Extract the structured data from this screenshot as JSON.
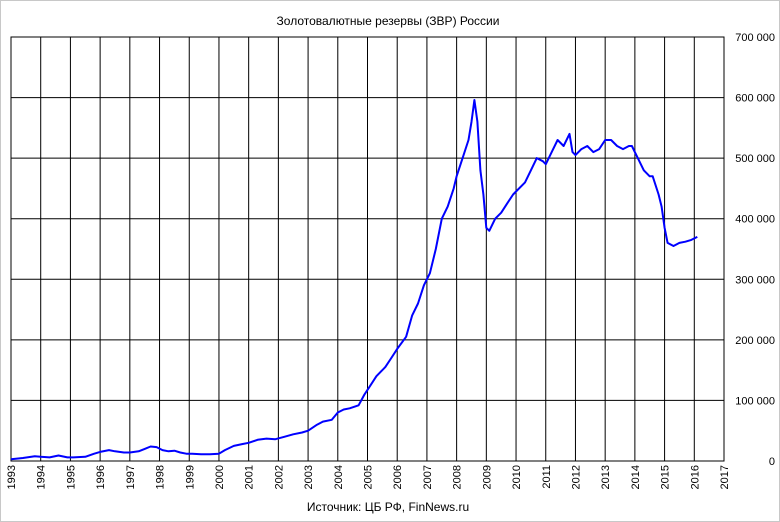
{
  "chart_data": {
    "type": "line",
    "title": "Золотовалютные резервы (ЗВР) России",
    "source": "Источник: ЦБ РФ, FinNews.ru",
    "xlabel": "",
    "ylabel": "",
    "xlim": [
      1993,
      2017
    ],
    "ylim": [
      0,
      700000
    ],
    "x_ticks": [
      "1993",
      "1994",
      "1995",
      "1996",
      "1997",
      "1998",
      "1999",
      "2000",
      "2001",
      "2002",
      "2003",
      "2004",
      "2005",
      "2006",
      "2007",
      "2008",
      "2009",
      "2010",
      "2011",
      "2012",
      "2013",
      "2014",
      "2015",
      "2016",
      "2017"
    ],
    "y_ticks": [
      "0",
      "100 000",
      "200 000",
      "300 000",
      "400 000",
      "500 000",
      "600 000",
      "700 000"
    ],
    "y_axis_side": "right",
    "grid": true,
    "line_color": "#0000ff",
    "series": [
      {
        "x": [
          1993.0,
          1993.4,
          1993.8,
          1994.0,
          1994.3,
          1994.6,
          1994.9,
          1995.1,
          1995.5,
          1995.8,
          1996.0,
          1996.3,
          1996.5,
          1996.8,
          1997.0,
          1997.3,
          1997.5,
          1997.7,
          1997.9,
          1998.1,
          1998.3,
          1998.5,
          1998.7,
          1998.9,
          1999.1,
          1999.4,
          1999.7,
          2000.0,
          2000.2,
          2000.5,
          2000.8,
          2001.0,
          2001.3,
          2001.6,
          2001.9,
          2002.2,
          2002.5,
          2002.8,
          2003.0,
          2003.3,
          2003.5,
          2003.8,
          2004.0,
          2004.2,
          2004.4,
          2004.7,
          2004.9,
          2005.1,
          2005.3,
          2005.6,
          2005.8,
          2006.0,
          2006.3,
          2006.5,
          2006.7,
          2006.9,
          2007.1,
          2007.3,
          2007.5,
          2007.7,
          2007.9,
          2008.0,
          2008.2,
          2008.4,
          2008.5,
          2008.6,
          2008.7,
          2008.8,
          2008.9,
          2009.0,
          2009.1,
          2009.3,
          2009.5,
          2009.7,
          2009.9,
          2010.0,
          2010.3,
          2010.5,
          2010.7,
          2010.9,
          2011.0,
          2011.2,
          2011.4,
          2011.6,
          2011.8,
          2011.9,
          2012.0,
          2012.2,
          2012.4,
          2012.6,
          2012.8,
          2013.0,
          2013.2,
          2013.4,
          2013.6,
          2013.8,
          2013.9,
          2014.1,
          2014.3,
          2014.5,
          2014.6,
          2014.8,
          2014.9,
          2015.0,
          2015.1,
          2015.3,
          2015.5,
          2015.7,
          2015.9,
          2016.1
        ],
        "values": [
          3000,
          5000,
          8000,
          7000,
          6000,
          9000,
          6000,
          6000,
          7000,
          12000,
          15000,
          18000,
          16000,
          14000,
          14000,
          16000,
          20000,
          24000,
          23000,
          18000,
          16000,
          17000,
          14000,
          12000,
          12000,
          11000,
          11000,
          12000,
          18000,
          25000,
          28000,
          30000,
          35000,
          37000,
          36000,
          40000,
          44000,
          47000,
          50000,
          60000,
          65000,
          68000,
          80000,
          85000,
          87000,
          92000,
          110000,
          125000,
          140000,
          155000,
          170000,
          185000,
          205000,
          240000,
          260000,
          290000,
          310000,
          350000,
          400000,
          420000,
          450000,
          470000,
          500000,
          530000,
          560000,
          596000,
          560000,
          480000,
          440000,
          385000,
          380000,
          400000,
          410000,
          425000,
          440000,
          445000,
          460000,
          480000,
          500000,
          495000,
          490000,
          510000,
          530000,
          520000,
          540000,
          510000,
          505000,
          515000,
          520000,
          510000,
          515000,
          530000,
          530000,
          520000,
          515000,
          520000,
          520000,
          500000,
          480000,
          470000,
          470000,
          440000,
          420000,
          385000,
          360000,
          355000,
          360000,
          362000,
          365000,
          370000
        ]
      }
    ]
  }
}
